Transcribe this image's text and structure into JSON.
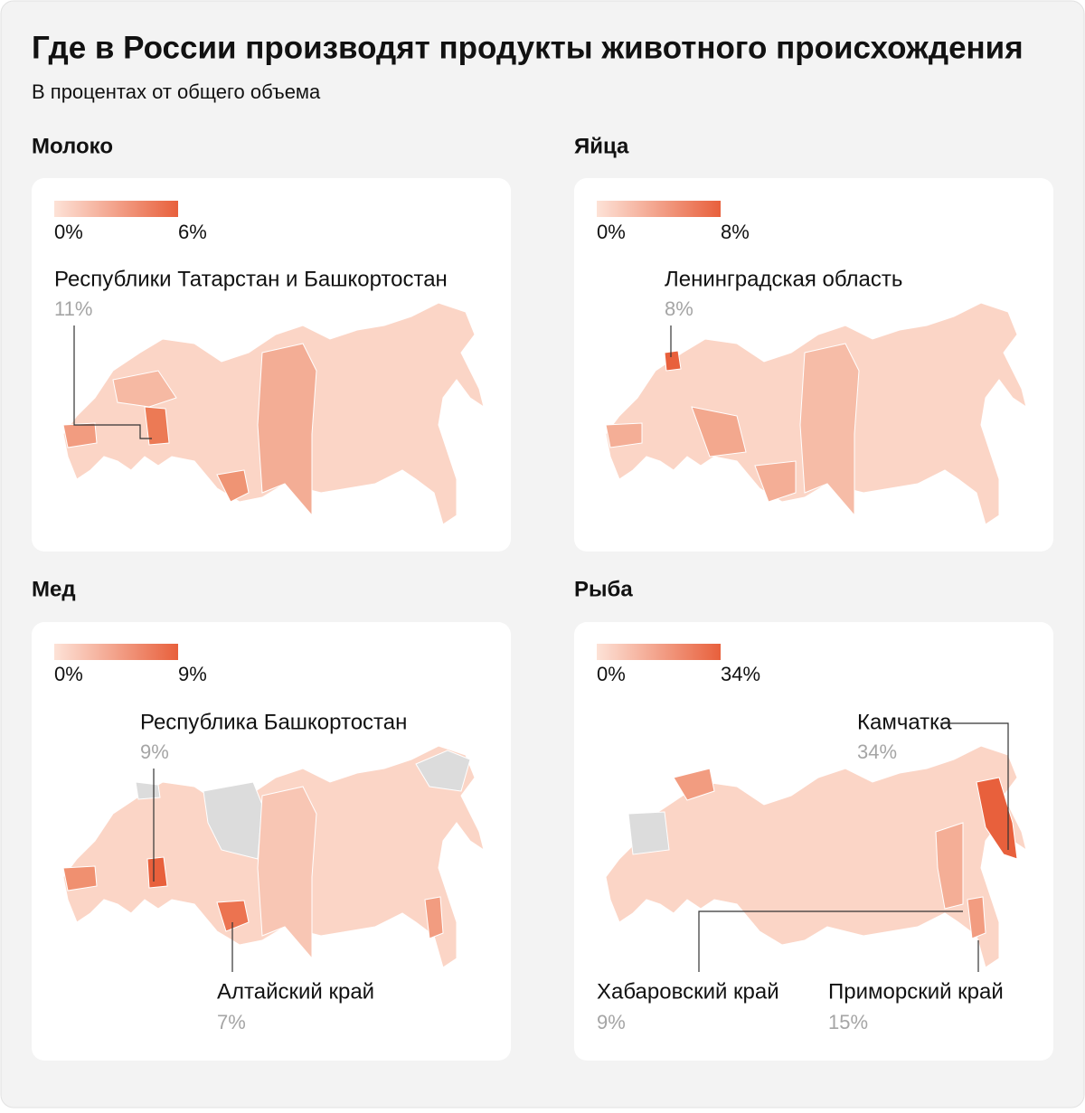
{
  "header": {
    "title": "Где в России производят продукты животного происхождения",
    "subtitle": "В процентах от общего объема"
  },
  "panels": [
    {
      "title": "Молоко",
      "legend": {
        "min": "0%",
        "max": "6%"
      },
      "callouts": [
        {
          "label": "Республики Татарстан и Башкортостан",
          "value": "11%"
        }
      ]
    },
    {
      "title": "Яйца",
      "legend": {
        "min": "0%",
        "max": "8%"
      },
      "callouts": [
        {
          "label": "Ленинградская область",
          "value": "8%"
        }
      ]
    },
    {
      "title": "Мед",
      "legend": {
        "min": "0%",
        "max": "9%"
      },
      "callouts": [
        {
          "label": "Республика Башкортостан",
          "value": "9%"
        },
        {
          "label": "Алтайский край",
          "value": "7%"
        }
      ]
    },
    {
      "title": "Рыба",
      "legend": {
        "min": "0%",
        "max": "34%"
      },
      "callouts": [
        {
          "label": "Камчатка",
          "value": "34%"
        },
        {
          "label": "Хабаровский край",
          "value": "9%"
        },
        {
          "label": "Приморский край",
          "value": "15%"
        }
      ]
    }
  ]
}
